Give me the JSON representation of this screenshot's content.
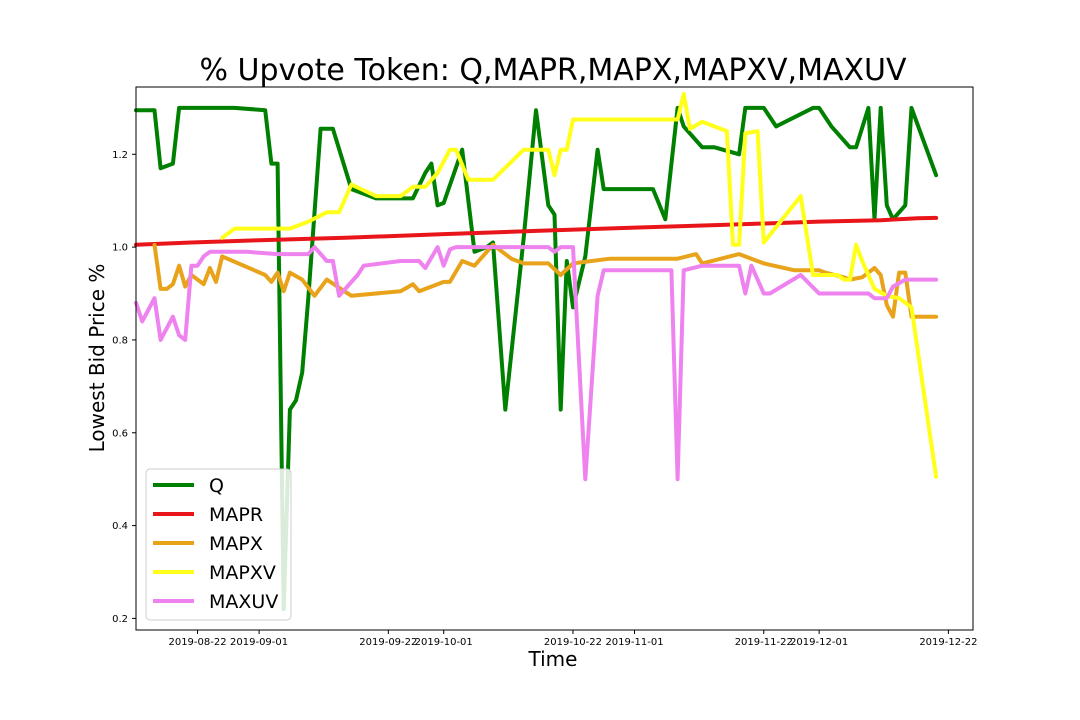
{
  "chart_data": {
    "type": "line",
    "title": "% Upvote Token: Q,MAPR,MAPX,MAPXV,MAXUV",
    "xlabel": "Time",
    "ylabel": "Lowest Bid Price %",
    "x_ticks": [
      "2019-08-22",
      "2019-09-01",
      "2019-09-22",
      "2019-10-01",
      "2019-10-22",
      "2019-11-01",
      "2019-11-22",
      "2019-12-01",
      "2019-12-22"
    ],
    "x_start": "2019-08-12",
    "x_end": "2019-12-26",
    "y_ticks": [
      0.2,
      0.4,
      0.6,
      0.8,
      1.0,
      1.2
    ],
    "ylim": [
      0.175,
      1.345
    ],
    "grid": false,
    "legend_position": "lower-left",
    "series": [
      {
        "name": "Q",
        "color": "#008000",
        "x": [
          "2019-08-12",
          "2019-08-15",
          "2019-08-16",
          "2019-08-18",
          "2019-08-19",
          "2019-08-28",
          "2019-09-02",
          "2019-09-03",
          "2019-09-04",
          "2019-09-05",
          "2019-09-06",
          "2019-09-07",
          "2019-09-08",
          "2019-09-09",
          "2019-09-11",
          "2019-09-13",
          "2019-09-16",
          "2019-09-20",
          "2019-09-26",
          "2019-09-28",
          "2019-09-29",
          "2019-09-30",
          "2019-10-01",
          "2019-10-04",
          "2019-10-06",
          "2019-10-08",
          "2019-10-09",
          "2019-10-11",
          "2019-10-14",
          "2019-10-16",
          "2019-10-18",
          "2019-10-19",
          "2019-10-20",
          "2019-10-21",
          "2019-10-22",
          "2019-10-24",
          "2019-10-26",
          "2019-10-27",
          "2019-11-04",
          "2019-11-06",
          "2019-11-08",
          "2019-11-09",
          "2019-11-12",
          "2019-11-14",
          "2019-11-18",
          "2019-11-19",
          "2019-11-22",
          "2019-11-24",
          "2019-11-30",
          "2019-12-01",
          "2019-12-03",
          "2019-12-06",
          "2019-12-07",
          "2019-12-09",
          "2019-12-10",
          "2019-12-11",
          "2019-12-12",
          "2019-12-13",
          "2019-12-15",
          "2019-12-16",
          "2019-12-20"
        ],
        "values": [
          1.295,
          1.295,
          1.17,
          1.18,
          1.3,
          1.3,
          1.295,
          1.18,
          1.18,
          0.22,
          0.65,
          0.67,
          0.73,
          0.89,
          1.255,
          1.255,
          1.125,
          1.105,
          1.105,
          1.16,
          1.18,
          1.09,
          1.095,
          1.21,
          0.99,
          1.0,
          1.01,
          0.65,
          1.02,
          1.295,
          1.09,
          1.07,
          0.65,
          0.97,
          0.87,
          0.98,
          1.21,
          1.125,
          1.125,
          1.06,
          1.3,
          1.26,
          1.215,
          1.215,
          1.2,
          1.3,
          1.3,
          1.26,
          1.3,
          1.3,
          1.26,
          1.215,
          1.215,
          1.3,
          1.06,
          1.3,
          1.09,
          1.06,
          1.09,
          1.3,
          1.155
        ]
      },
      {
        "name": "MAPR",
        "color": "#e8161a",
        "x": [
          "2019-08-12",
          "2019-08-21",
          "2019-09-01",
          "2019-09-15",
          "2019-10-01",
          "2019-10-16",
          "2019-11-01",
          "2019-11-16",
          "2019-12-01",
          "2019-12-11",
          "2019-12-17",
          "2019-12-20"
        ],
        "values": [
          1.005,
          1.01,
          1.015,
          1.02,
          1.028,
          1.035,
          1.042,
          1.048,
          1.055,
          1.058,
          1.062,
          1.063
        ]
      },
      {
        "name": "MAPX",
        "color": "#e8a31a",
        "x": [
          "2019-08-15",
          "2019-08-16",
          "2019-08-17",
          "2019-08-18",
          "2019-08-19",
          "2019-08-20",
          "2019-08-21",
          "2019-08-23",
          "2019-08-24",
          "2019-08-25",
          "2019-08-26",
          "2019-09-02",
          "2019-09-03",
          "2019-09-04",
          "2019-09-05",
          "2019-09-06",
          "2019-09-08",
          "2019-09-10",
          "2019-09-12",
          "2019-09-16",
          "2019-09-24",
          "2019-09-26",
          "2019-09-27",
          "2019-09-30",
          "2019-10-01",
          "2019-10-02",
          "2019-10-04",
          "2019-10-06",
          "2019-10-09",
          "2019-10-12",
          "2019-10-14",
          "2019-10-18",
          "2019-10-20",
          "2019-10-22",
          "2019-10-28",
          "2019-11-08",
          "2019-11-11",
          "2019-11-12",
          "2019-11-18",
          "2019-11-22",
          "2019-11-27",
          "2019-12-01",
          "2019-12-02",
          "2019-12-05",
          "2019-12-06",
          "2019-12-08",
          "2019-12-10",
          "2019-12-11",
          "2019-12-12",
          "2019-12-13",
          "2019-12-14",
          "2019-12-15",
          "2019-12-16",
          "2019-12-20"
        ],
        "values": [
          1.005,
          0.91,
          0.91,
          0.92,
          0.96,
          0.915,
          0.94,
          0.92,
          0.955,
          0.925,
          0.98,
          0.94,
          0.925,
          0.945,
          0.905,
          0.945,
          0.93,
          0.895,
          0.93,
          0.895,
          0.905,
          0.92,
          0.905,
          0.92,
          0.925,
          0.925,
          0.97,
          0.96,
          1.005,
          0.975,
          0.965,
          0.965,
          0.94,
          0.965,
          0.975,
          0.975,
          0.985,
          0.965,
          0.985,
          0.965,
          0.95,
          0.95,
          0.945,
          0.935,
          0.93,
          0.935,
          0.955,
          0.94,
          0.875,
          0.85,
          0.945,
          0.945,
          0.85,
          0.85
        ]
      },
      {
        "name": "MAPXV",
        "color": "#ffff1a",
        "x": [
          "2019-08-26",
          "2019-08-28",
          "2019-09-01",
          "2019-09-06",
          "2019-09-09",
          "2019-09-12",
          "2019-09-14",
          "2019-09-16",
          "2019-09-20",
          "2019-09-24",
          "2019-09-26",
          "2019-09-28",
          "2019-09-30",
          "2019-10-02",
          "2019-10-03",
          "2019-10-05",
          "2019-10-09",
          "2019-10-14",
          "2019-10-18",
          "2019-10-19",
          "2019-10-20",
          "2019-10-21",
          "2019-10-22",
          "2019-10-24",
          "2019-11-08",
          "2019-11-09",
          "2019-11-10",
          "2019-11-12",
          "2019-11-16",
          "2019-11-17",
          "2019-11-18",
          "2019-11-19",
          "2019-11-21",
          "2019-11-22",
          "2019-11-28",
          "2019-11-30",
          "2019-12-04",
          "2019-12-05",
          "2019-12-06",
          "2019-12-07",
          "2019-12-08",
          "2019-12-10",
          "2019-12-12",
          "2019-12-14",
          "2019-12-16",
          "2019-12-20"
        ],
        "values": [
          1.02,
          1.04,
          1.04,
          1.04,
          1.055,
          1.075,
          1.075,
          1.135,
          1.11,
          1.11,
          1.13,
          1.13,
          1.16,
          1.21,
          1.21,
          1.145,
          1.145,
          1.21,
          1.21,
          1.155,
          1.21,
          1.21,
          1.275,
          1.275,
          1.275,
          1.33,
          1.255,
          1.27,
          1.25,
          1.005,
          1.005,
          1.245,
          1.25,
          1.01,
          1.11,
          0.94,
          0.94,
          0.93,
          0.93,
          1.005,
          0.97,
          0.91,
          0.895,
          0.89,
          0.87,
          0.505
        ]
      },
      {
        "name": "MAXUV",
        "color": "#ee82ee",
        "x": [
          "2019-08-12",
          "2019-08-13",
          "2019-08-15",
          "2019-08-16",
          "2019-08-18",
          "2019-08-19",
          "2019-08-20",
          "2019-08-21",
          "2019-08-22",
          "2019-08-23",
          "2019-08-24",
          "2019-08-30",
          "2019-09-04",
          "2019-09-08",
          "2019-09-09",
          "2019-09-10",
          "2019-09-12",
          "2019-09-13",
          "2019-09-14",
          "2019-09-17",
          "2019-09-18",
          "2019-09-24",
          "2019-09-26",
          "2019-09-27",
          "2019-09-28",
          "2019-09-30",
          "2019-10-01",
          "2019-10-02",
          "2019-10-03",
          "2019-10-18",
          "2019-10-19",
          "2019-10-20",
          "2019-10-22",
          "2019-10-24",
          "2019-10-26",
          "2019-10-27",
          "2019-10-28",
          "2019-11-07",
          "2019-11-08",
          "2019-11-09",
          "2019-11-12",
          "2019-11-18",
          "2019-11-19",
          "2019-11-20",
          "2019-11-22",
          "2019-11-23",
          "2019-11-28",
          "2019-12-01",
          "2019-12-09",
          "2019-12-10",
          "2019-12-12",
          "2019-12-13",
          "2019-12-15",
          "2019-12-20"
        ],
        "values": [
          0.88,
          0.84,
          0.89,
          0.8,
          0.85,
          0.81,
          0.8,
          0.96,
          0.96,
          0.98,
          0.99,
          0.99,
          0.985,
          0.985,
          0.985,
          1.0,
          0.97,
          0.97,
          0.895,
          0.94,
          0.96,
          0.97,
          0.97,
          0.97,
          0.955,
          1.0,
          0.96,
          0.995,
          1.0,
          1.0,
          0.99,
          1.0,
          1.0,
          0.5,
          0.895,
          0.95,
          0.95,
          0.95,
          0.5,
          0.95,
          0.96,
          0.96,
          0.9,
          0.96,
          0.9,
          0.9,
          0.94,
          0.9,
          0.9,
          0.89,
          0.89,
          0.915,
          0.93,
          0.93
        ]
      }
    ]
  }
}
